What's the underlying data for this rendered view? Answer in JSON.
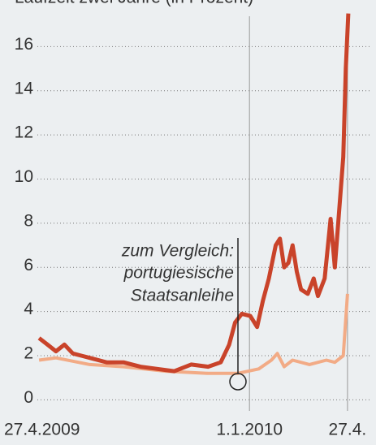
{
  "chart_data": {
    "type": "line",
    "title": "Laufzeit zwei Jahre (in Prozent)",
    "annotation": [
      "zum Vergleich:",
      "portugiesische",
      "Staatsanleihe"
    ],
    "xlim": [
      -2,
      392
    ],
    "xticks": [
      {
        "value": 0,
        "label": "27.4.2009"
      },
      {
        "value": 249,
        "label": "1.1.2010"
      },
      {
        "value": 365,
        "label": "27.4."
      }
    ],
    "ylim": [
      -0.5,
      18
    ],
    "yticks": [
      0,
      2,
      4,
      6,
      8,
      10,
      12,
      14,
      16
    ],
    "grid": true,
    "series": [
      {
        "color": "#c9432a",
        "x": [
          0,
          10,
          20,
          30,
          40,
          50,
          60,
          80,
          100,
          120,
          140,
          160,
          180,
          200,
          215,
          225,
          232,
          240,
          250,
          258,
          265,
          272,
          280,
          285,
          290,
          295,
          300,
          305,
          310,
          318,
          325,
          330,
          338,
          345,
          350,
          355,
          360,
          363,
          366
        ],
        "values": [
          2.8,
          2.5,
          2.2,
          2.5,
          2.1,
          2.0,
          1.9,
          1.7,
          1.7,
          1.5,
          1.4,
          1.3,
          1.6,
          1.5,
          1.7,
          2.5,
          3.5,
          3.9,
          3.8,
          3.3,
          4.5,
          5.5,
          7.0,
          7.3,
          6.0,
          6.2,
          7.0,
          5.8,
          5.0,
          4.8,
          5.5,
          4.7,
          5.5,
          8.2,
          6.0,
          8.5,
          11,
          15,
          17.5
        ]
      },
      {
        "color": "#f2ab86",
        "x": [
          0,
          20,
          60,
          100,
          150,
          200,
          235,
          260,
          275,
          282,
          290,
          300,
          320,
          340,
          350,
          360,
          365
        ],
        "values": [
          1.8,
          1.9,
          1.6,
          1.5,
          1.3,
          1.2,
          1.2,
          1.4,
          1.8,
          2.1,
          1.5,
          1.8,
          1.6,
          1.8,
          1.7,
          2.0,
          4.8
        ]
      }
    ]
  }
}
